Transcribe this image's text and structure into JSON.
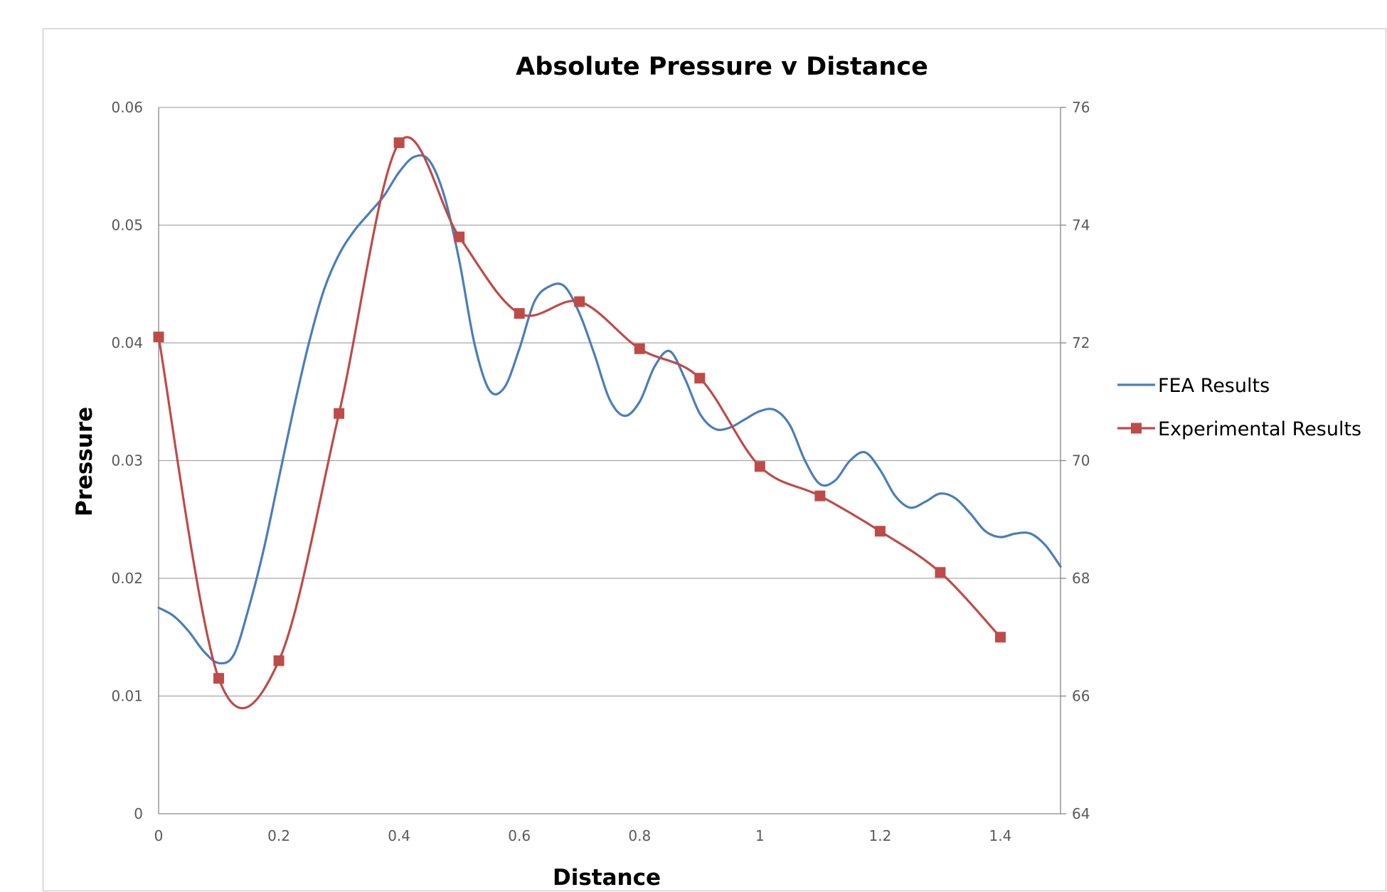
{
  "chart_data": {
    "type": "line",
    "title": "Absolute Pressure v Distance",
    "xlabel": "Distance",
    "ylabel": "Pressure",
    "xlim": [
      0,
      1.5
    ],
    "ylim": [
      0,
      0.06
    ],
    "y2lim": [
      64,
      76
    ],
    "x_ticks": [
      "0",
      "0.2",
      "0.4",
      "0.6",
      "0.8",
      "1",
      "1.2",
      "1.4"
    ],
    "y_ticks": [
      "0",
      "0.01",
      "0.02",
      "0.03",
      "0.04",
      "0.05",
      "0.06"
    ],
    "y2_ticks": [
      "64",
      "66",
      "68",
      "70",
      "72",
      "74",
      "76"
    ],
    "grid": true,
    "legend": "right",
    "series": [
      {
        "name": "FEA Results",
        "axis": "left",
        "color": "#4a7ebb",
        "marker": "none",
        "x": [
          0,
          0.025,
          0.05,
          0.075,
          0.1,
          0.125,
          0.15,
          0.175,
          0.2,
          0.225,
          0.25,
          0.275,
          0.3,
          0.325,
          0.35,
          0.375,
          0.4,
          0.425,
          0.45,
          0.475,
          0.5,
          0.525,
          0.55,
          0.575,
          0.6,
          0.625,
          0.65,
          0.675,
          0.7,
          0.725,
          0.75,
          0.775,
          0.8,
          0.825,
          0.85,
          0.875,
          0.9,
          0.925,
          0.95,
          0.975,
          1.0,
          1.025,
          1.05,
          1.075,
          1.1,
          1.125,
          1.15,
          1.175,
          1.2,
          1.225,
          1.25,
          1.275,
          1.3,
          1.325,
          1.35,
          1.375,
          1.4,
          1.425,
          1.45,
          1.475,
          1.5
        ],
        "values": [
          0.0175,
          0.0168,
          0.0155,
          0.0138,
          0.0128,
          0.0135,
          0.0175,
          0.0225,
          0.0285,
          0.0345,
          0.04,
          0.0445,
          0.0475,
          0.0495,
          0.051,
          0.0525,
          0.0545,
          0.0558,
          0.0555,
          0.0525,
          0.047,
          0.04,
          0.036,
          0.0362,
          0.0395,
          0.0435,
          0.0448,
          0.0448,
          0.0425,
          0.039,
          0.0352,
          0.0338,
          0.035,
          0.038,
          0.0393,
          0.037,
          0.034,
          0.0327,
          0.0328,
          0.0335,
          0.0342,
          0.0343,
          0.033,
          0.03,
          0.028,
          0.0283,
          0.03,
          0.0307,
          0.0292,
          0.027,
          0.026,
          0.0265,
          0.0272,
          0.0268,
          0.0255,
          0.024,
          0.0235,
          0.0238,
          0.0238,
          0.0228,
          0.021
        ]
      },
      {
        "name": "Experimental Results",
        "axis": "right",
        "color": "#be4b48",
        "marker": "square",
        "x": [
          0,
          0.1,
          0.2,
          0.3,
          0.4,
          0.5,
          0.6,
          0.7,
          0.8,
          0.9,
          1.0,
          1.1,
          1.2,
          1.3,
          1.4
        ],
        "values": [
          72.1,
          66.3,
          66.6,
          70.8,
          75.4,
          73.8,
          72.5,
          72.7,
          71.9,
          71.4,
          69.9,
          69.4,
          68.8,
          68.1,
          67.0
        ]
      }
    ]
  }
}
